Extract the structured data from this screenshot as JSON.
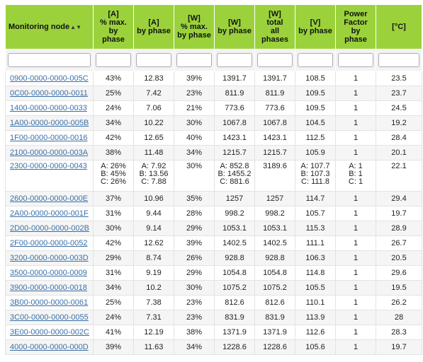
{
  "table": {
    "headers": [
      {
        "key": "node",
        "lines": [
          "Monitoring node"
        ],
        "sort_icon": "▲▼"
      },
      {
        "key": "a_pct",
        "lines": [
          "[A]",
          "% max.",
          "by",
          "phase"
        ]
      },
      {
        "key": "a",
        "lines": [
          "[A]",
          "by phase"
        ]
      },
      {
        "key": "w_pct",
        "lines": [
          "[W]",
          "% max.",
          "by phase"
        ]
      },
      {
        "key": "w",
        "lines": [
          "[W]",
          "by phase"
        ]
      },
      {
        "key": "w_total",
        "lines": [
          "[W]",
          "total",
          "all",
          "phases"
        ]
      },
      {
        "key": "v",
        "lines": [
          "[V]",
          "by phase"
        ]
      },
      {
        "key": "pf",
        "lines": [
          "Power",
          "Factor",
          "by",
          "phase"
        ]
      },
      {
        "key": "temp",
        "lines": [
          "[°C]"
        ]
      }
    ],
    "rows": [
      [
        "0900-0000-0000-005C",
        "43%",
        "12.83",
        "39%",
        "1391.7",
        "1391.7",
        "108.5",
        "1",
        "23.5"
      ],
      [
        "0C00-0000-0000-0011",
        "25%",
        "7.42",
        "23%",
        "811.9",
        "811.9",
        "109.5",
        "1",
        "23.7"
      ],
      [
        "1400-0000-0000-0033",
        "24%",
        "7.06",
        "21%",
        "773.6",
        "773.6",
        "109.5",
        "1",
        "24.5"
      ],
      [
        "1A00-0000-0000-005B",
        "34%",
        "10.22",
        "30%",
        "1067.8",
        "1067.8",
        "104.5",
        "1",
        "19.2"
      ],
      [
        "1F00-0000-0000-0016",
        "42%",
        "12.65",
        "40%",
        "1423.1",
        "1423.1",
        "112.5",
        "1",
        "28.4"
      ],
      [
        "2100-0000-0000-003A",
        "38%",
        "11.48",
        "34%",
        "1215.7",
        "1215.7",
        "105.9",
        "1",
        "20.1"
      ],
      [
        "2300-0000-0000-0043",
        [
          "A: 26%",
          "B: 45%",
          "C: 26%"
        ],
        [
          "A: 7.92",
          "B: 13.56",
          "C: 7.88"
        ],
        "30%",
        [
          "A: 852.8",
          "B: 1455.2",
          "C: 881.6"
        ],
        "3189.6",
        [
          "A: 107.7",
          "B: 107.3",
          "C: 111.8"
        ],
        [
          "A: 1",
          "B: 1",
          "C: 1"
        ],
        "22.1"
      ],
      [
        "2600-0000-0000-000E",
        "37%",
        "10.96",
        "35%",
        "1257",
        "1257",
        "114.7",
        "1",
        "29.4"
      ],
      [
        "2A00-0000-0000-001F",
        "31%",
        "9.44",
        "28%",
        "998.2",
        "998.2",
        "105.7",
        "1",
        "19.7"
      ],
      [
        "2D00-0000-0000-002B",
        "30%",
        "9.14",
        "29%",
        "1053.1",
        "1053.1",
        "115.3",
        "1",
        "28.9"
      ],
      [
        "2F00-0000-0000-0052",
        "42%",
        "12.62",
        "39%",
        "1402.5",
        "1402.5",
        "111.1",
        "1",
        "26.7"
      ],
      [
        "3200-0000-0000-003D",
        "29%",
        "8.74",
        "26%",
        "928.8",
        "928.8",
        "106.3",
        "1",
        "20.5"
      ],
      [
        "3500-0000-0000-0009",
        "31%",
        "9.19",
        "29%",
        "1054.8",
        "1054.8",
        "114.8",
        "1",
        "29.6"
      ],
      [
        "3900-0000-0000-0018",
        "34%",
        "10.2",
        "30%",
        "1075.2",
        "1075.2",
        "105.5",
        "1",
        "19.5"
      ],
      [
        "3B00-0000-0000-0061",
        "25%",
        "7.38",
        "23%",
        "812.6",
        "812.6",
        "110.1",
        "1",
        "26.2"
      ],
      [
        "3C00-0000-0000-0055",
        "24%",
        "7.31",
        "23%",
        "831.9",
        "831.9",
        "113.9",
        "1",
        "28"
      ],
      [
        "3E00-0000-0000-002C",
        "41%",
        "12.19",
        "38%",
        "1371.9",
        "1371.9",
        "112.6",
        "1",
        "28.3"
      ],
      [
        "4000-0000-0000-000D",
        "39%",
        "11.63",
        "34%",
        "1228.6",
        "1228.6",
        "105.6",
        "1",
        "19.7"
      ]
    ]
  },
  "colors": {
    "header_bg": "#9bd23c",
    "link": "#3a6fa6",
    "row_alt": "#f5f5f5"
  }
}
